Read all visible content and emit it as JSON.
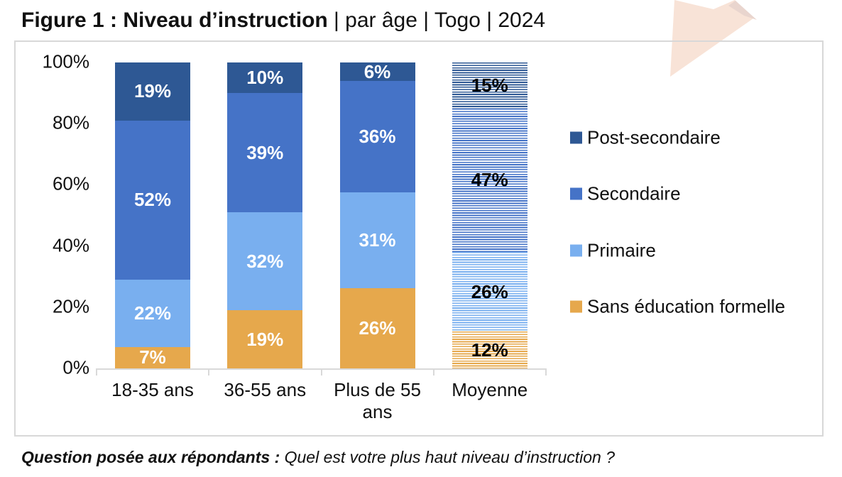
{
  "title": {
    "bold": "Figure 1 : Niveau d’instruction",
    "rest": " | par âge | Togo | 2024"
  },
  "footnote": {
    "bold": "Question posée aux répondants : ",
    "rest": "Quel est votre plus haut niveau d’instruction ?"
  },
  "colors": {
    "post_secondaire": "#2E5894",
    "secondaire": "#4573C7",
    "primaire": "#79AFEF",
    "sans_education": "#E6A84C",
    "axis_gray": "#D9D9D9",
    "frame_gray": "#D8D8D8",
    "decor_light": "#F8E3D7",
    "decor_dark": "#E9D5CE",
    "label_white": "#FFFFFF",
    "label_black": "#000000"
  },
  "chart_data": {
    "type": "bar",
    "stacked": true,
    "percent": true,
    "title": "Figure 1 : Niveau d’instruction | par âge | Togo | 2024",
    "categories": [
      "18-35 ans",
      "36-55 ans",
      "Plus de 55\nans",
      "Moyenne"
    ],
    "series": [
      {
        "name": "Sans éducation formelle",
        "color": "#E6A84C",
        "values": [
          7,
          19,
          26,
          12
        ]
      },
      {
        "name": "Primaire",
        "color": "#79AFEF",
        "values": [
          22,
          32,
          31,
          26
        ]
      },
      {
        "name": "Secondaire",
        "color": "#4573C7",
        "values": [
          52,
          39,
          36,
          47
        ]
      },
      {
        "name": "Post-secondaire",
        "color": "#2E5894",
        "values": [
          19,
          10,
          6,
          15
        ]
      }
    ],
    "legend": [
      "Post-secondaire",
      "Secondaire",
      "Primaire",
      "Sans éducation formelle"
    ],
    "legend_position": "right",
    "y_ticks": [
      "100%",
      "80%",
      "60%",
      "40%",
      "20%",
      "0%"
    ],
    "ylim": [
      0,
      100
    ],
    "grid": false,
    "hatched_category_index": 3,
    "data_label_suffix": "%",
    "data_label_color_solid": "#FFFFFF",
    "data_label_color_hatched": "#000000"
  }
}
